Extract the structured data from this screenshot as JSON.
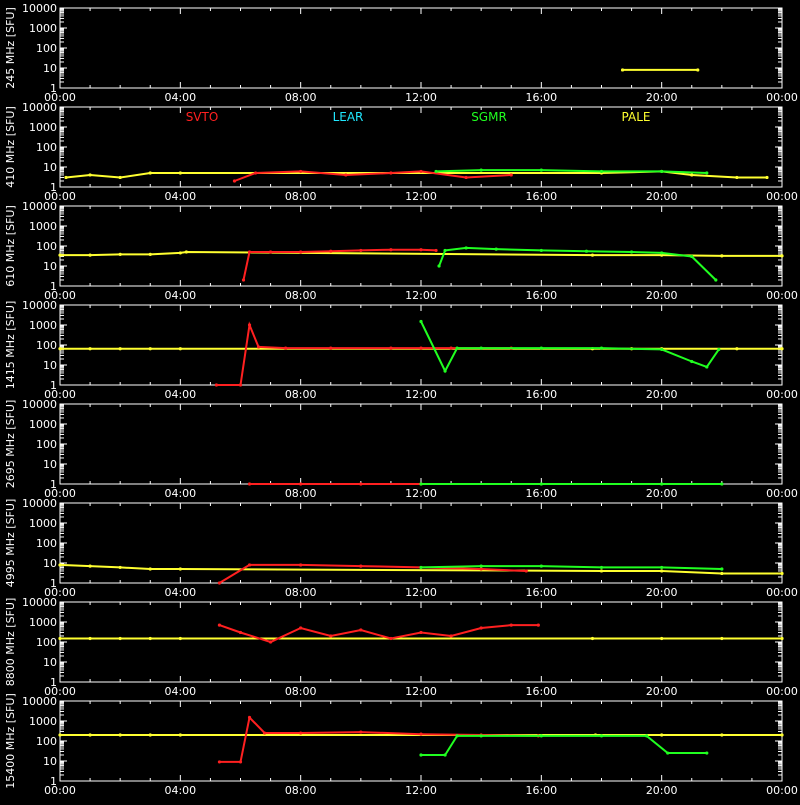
{
  "chart_data": {
    "type": "scatter",
    "x_ticks": [
      "00:00",
      "04:00",
      "08:00",
      "12:00",
      "16:00",
      "20:00",
      "00:00"
    ],
    "y_ticks": [
      "1",
      "10",
      "100",
      "1000",
      "10000"
    ],
    "y_scale": "log",
    "ylim": [
      1,
      10000
    ],
    "xlim_hours": [
      0,
      24
    ],
    "colors": {
      "SVTO": "#ff2020",
      "LEAR": "#20e8ff",
      "SGMR": "#20ff20",
      "PALE": "#ffff30",
      "axes": "#ffffff",
      "background": "#000000"
    },
    "legend": {
      "placement": "top of second panel",
      "entries": [
        "SVTO",
        "LEAR",
        "SGMR",
        "PALE"
      ]
    },
    "panels": [
      {
        "ylabel": "245 MHz [SFU]",
        "series": [
          {
            "name": "PALE",
            "points": [
              [
                18.7,
                8
              ],
              [
                21.2,
                8
              ]
            ]
          }
        ]
      },
      {
        "ylabel": "410 MHz [SFU]",
        "series": [
          {
            "name": "PALE",
            "points": [
              [
                0.2,
                3
              ],
              [
                1.0,
                4
              ],
              [
                2.0,
                3
              ],
              [
                3.0,
                5
              ],
              [
                4.0,
                5
              ],
              [
                18.0,
                5
              ],
              [
                20.0,
                6
              ],
              [
                21.0,
                4
              ],
              [
                22.5,
                3
              ],
              [
                23.5,
                3
              ]
            ]
          },
          {
            "name": "SVTO",
            "points": [
              [
                5.8,
                2
              ],
              [
                6.5,
                5
              ],
              [
                8.0,
                6
              ],
              [
                9.5,
                4
              ],
              [
                11.0,
                5
              ],
              [
                12.0,
                6
              ],
              [
                13.5,
                3
              ],
              [
                15.0,
                4
              ]
            ]
          },
          {
            "name": "SGMR",
            "points": [
              [
                12.5,
                6
              ],
              [
                14.0,
                7
              ],
              [
                16.0,
                7
              ],
              [
                18.0,
                6
              ],
              [
                20.0,
                6
              ],
              [
                21.5,
                5
              ]
            ]
          }
        ]
      },
      {
        "ylabel": "610 MHz [SFU]",
        "series": [
          {
            "name": "PALE",
            "points": [
              [
                0.0,
                35
              ],
              [
                1.0,
                35
              ],
              [
                2.0,
                38
              ],
              [
                3.0,
                38
              ],
              [
                4.0,
                45
              ],
              [
                4.2,
                50
              ],
              [
                17.7,
                35
              ],
              [
                20.0,
                35
              ],
              [
                22.0,
                32
              ],
              [
                24.0,
                32
              ]
            ]
          },
          {
            "name": "SVTO",
            "points": [
              [
                6.1,
                2
              ],
              [
                6.3,
                50
              ],
              [
                7.0,
                50
              ],
              [
                8.0,
                50
              ],
              [
                9.0,
                55
              ],
              [
                10.0,
                60
              ],
              [
                11.0,
                65
              ],
              [
                12.0,
                65
              ],
              [
                12.5,
                60
              ]
            ]
          },
          {
            "name": "SGMR",
            "points": [
              [
                12.6,
                10
              ],
              [
                12.8,
                60
              ],
              [
                13.5,
                80
              ],
              [
                14.5,
                70
              ],
              [
                16.0,
                60
              ],
              [
                17.5,
                55
              ],
              [
                19.0,
                50
              ],
              [
                20.0,
                45
              ],
              [
                21.0,
                30
              ],
              [
                21.8,
                2
              ]
            ]
          }
        ]
      },
      {
        "ylabel": "1415 MHz [SFU]",
        "series": [
          {
            "name": "PALE",
            "points": [
              [
                0.0,
                65
              ],
              [
                1.0,
                65
              ],
              [
                2.0,
                65
              ],
              [
                3.0,
                65
              ],
              [
                4.0,
                65
              ],
              [
                17.7,
                65
              ],
              [
                19.0,
                65
              ],
              [
                20.0,
                65
              ],
              [
                22.5,
                65
              ],
              [
                24.0,
                65
              ]
            ]
          },
          {
            "name": "SVTO",
            "points": [
              [
                5.2,
                1
              ],
              [
                6.0,
                1
              ],
              [
                6.3,
                1000
              ],
              [
                6.6,
                80
              ],
              [
                7.5,
                70
              ],
              [
                9.0,
                70
              ],
              [
                11.0,
                70
              ],
              [
                12.0,
                70
              ],
              [
                13.0,
                70
              ],
              [
                15.0,
                70
              ]
            ]
          },
          {
            "name": "SGMR",
            "points": [
              [
                12.0,
                1500
              ],
              [
                12.8,
                5
              ],
              [
                13.2,
                70
              ],
              [
                14.0,
                70
              ],
              [
                16.0,
                70
              ],
              [
                18.0,
                70
              ],
              [
                20.0,
                60
              ],
              [
                21.0,
                15
              ],
              [
                21.5,
                8
              ],
              [
                21.9,
                60
              ]
            ]
          }
        ]
      },
      {
        "ylabel": "2695 MHz [SFU]",
        "series": [
          {
            "name": "SVTO",
            "points": [
              [
                6.3,
                1
              ],
              [
                8.0,
                1
              ],
              [
                10.0,
                1
              ],
              [
                12.0,
                1
              ]
            ]
          },
          {
            "name": "SGMR",
            "points": [
              [
                12.0,
                1
              ],
              [
                16.0,
                1
              ],
              [
                20.0,
                1
              ],
              [
                22.0,
                1
              ]
            ]
          }
        ]
      },
      {
        "ylabel": "4995 MHz [SFU]",
        "series": [
          {
            "name": "PALE",
            "points": [
              [
                0.0,
                8
              ],
              [
                1.0,
                7
              ],
              [
                2.0,
                6
              ],
              [
                3.0,
                5
              ],
              [
                4.0,
                5
              ],
              [
                18.0,
                4
              ],
              [
                20.0,
                4
              ],
              [
                22.0,
                3
              ],
              [
                24.0,
                3
              ]
            ]
          },
          {
            "name": "SVTO",
            "points": [
              [
                5.3,
                1
              ],
              [
                6.3,
                8
              ],
              [
                8.0,
                8
              ],
              [
                10.0,
                7
              ],
              [
                12.0,
                6
              ],
              [
                14.0,
                5
              ],
              [
                15.5,
                4
              ]
            ]
          },
          {
            "name": "SGMR",
            "points": [
              [
                12.0,
                6
              ],
              [
                14.0,
                7
              ],
              [
                16.0,
                7
              ],
              [
                18.0,
                6
              ],
              [
                20.0,
                6
              ],
              [
                22.0,
                5
              ]
            ]
          }
        ]
      },
      {
        "ylabel": "8800 MHz [SFU]",
        "series": [
          {
            "name": "PALE",
            "points": [
              [
                0.0,
                150
              ],
              [
                1.0,
                150
              ],
              [
                2.0,
                150
              ],
              [
                3.0,
                150
              ],
              [
                4.0,
                150
              ],
              [
                17.7,
                150
              ],
              [
                20.0,
                150
              ],
              [
                22.0,
                150
              ],
              [
                24.0,
                150
              ]
            ]
          },
          {
            "name": "SVTO",
            "points": [
              [
                5.3,
                700
              ],
              [
                6.0,
                300
              ],
              [
                7.0,
                100
              ],
              [
                8.0,
                500
              ],
              [
                9.0,
                200
              ],
              [
                10.0,
                400
              ],
              [
                11.0,
                150
              ],
              [
                12.0,
                300
              ],
              [
                13.0,
                200
              ],
              [
                14.0,
                500
              ],
              [
                15.0,
                700
              ],
              [
                15.9,
                700
              ]
            ]
          }
        ]
      },
      {
        "ylabel": "15400 MHz [SFU]",
        "series": [
          {
            "name": "PALE",
            "points": [
              [
                0.0,
                200
              ],
              [
                1.0,
                200
              ],
              [
                2.0,
                200
              ],
              [
                3.0,
                200
              ],
              [
                4.0,
                200
              ],
              [
                17.8,
                200
              ],
              [
                20.0,
                200
              ],
              [
                22.0,
                200
              ],
              [
                24.0,
                200
              ]
            ]
          },
          {
            "name": "SVTO",
            "points": [
              [
                5.3,
                9
              ],
              [
                6.0,
                9
              ],
              [
                6.3,
                1500
              ],
              [
                6.8,
                250
              ],
              [
                8.0,
                250
              ],
              [
                10.0,
                280
              ],
              [
                12.0,
                220
              ],
              [
                14.0,
                200
              ],
              [
                15.9,
                180
              ]
            ]
          },
          {
            "name": "SGMR",
            "points": [
              [
                12.0,
                20
              ],
              [
                12.8,
                20
              ],
              [
                13.2,
                180
              ],
              [
                14.0,
                180
              ],
              [
                16.0,
                180
              ],
              [
                18.0,
                180
              ],
              [
                19.5,
                180
              ],
              [
                20.2,
                25
              ],
              [
                21.5,
                25
              ]
            ]
          }
        ]
      }
    ]
  }
}
